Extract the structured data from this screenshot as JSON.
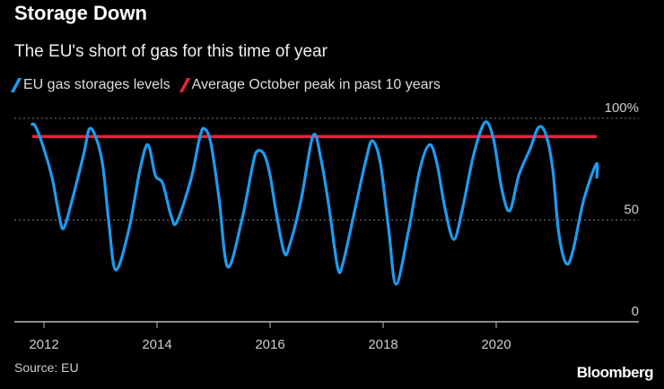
{
  "chart_data": {
    "type": "line",
    "title": "Storage Down",
    "subtitle": "The EU's short of gas for this time of year",
    "xlabel": "",
    "ylabel": "",
    "xlim": [
      2011.6,
      2022.6
    ],
    "ylim": [
      0,
      100
    ],
    "x_ticks": [
      2012,
      2014,
      2016,
      2018,
      2020
    ],
    "x_tick_labels": [
      "2012",
      "2014",
      "2016",
      "2018",
      "2020"
    ],
    "y_ticks": [
      0,
      50,
      100
    ],
    "y_tick_labels": [
      "0",
      "50",
      "100%"
    ],
    "grid": "horizontal dotted",
    "legend_position": "top-left",
    "series": [
      {
        "name": "EU gas storages levels",
        "color": "#1e9bf0",
        "points": [
          [
            2011.79,
            97
          ],
          [
            2011.85,
            96
          ],
          [
            2012.0,
            85
          ],
          [
            2012.15,
            70
          ],
          [
            2012.27,
            52
          ],
          [
            2012.35,
            46
          ],
          [
            2012.5,
            60
          ],
          [
            2012.7,
            82
          ],
          [
            2012.81,
            95
          ],
          [
            2012.95,
            88
          ],
          [
            2013.05,
            75
          ],
          [
            2013.15,
            48
          ],
          [
            2013.27,
            25.5
          ],
          [
            2013.5,
            45
          ],
          [
            2013.7,
            75
          ],
          [
            2013.84,
            87
          ],
          [
            2013.97,
            72
          ],
          [
            2014.1,
            68
          ],
          [
            2014.25,
            52
          ],
          [
            2014.35,
            49
          ],
          [
            2014.6,
            70
          ],
          [
            2014.75,
            90
          ],
          [
            2014.83,
            95
          ],
          [
            2014.95,
            88
          ],
          [
            2015.1,
            60
          ],
          [
            2015.25,
            27
          ],
          [
            2015.5,
            50
          ],
          [
            2015.7,
            78
          ],
          [
            2015.78,
            84
          ],
          [
            2015.9,
            82
          ],
          [
            2016.0,
            72
          ],
          [
            2016.1,
            55
          ],
          [
            2016.25,
            34
          ],
          [
            2016.35,
            38
          ],
          [
            2016.55,
            60
          ],
          [
            2016.76,
            91.5
          ],
          [
            2016.9,
            80
          ],
          [
            2017.05,
            55
          ],
          [
            2017.2,
            26
          ],
          [
            2017.3,
            30
          ],
          [
            2017.5,
            55
          ],
          [
            2017.7,
            80
          ],
          [
            2017.81,
            89
          ],
          [
            2017.95,
            78
          ],
          [
            2018.1,
            45
          ],
          [
            2018.23,
            18.5
          ],
          [
            2018.45,
            45
          ],
          [
            2018.65,
            75
          ],
          [
            2018.82,
            87
          ],
          [
            2018.95,
            78
          ],
          [
            2019.1,
            55
          ],
          [
            2019.25,
            40.5
          ],
          [
            2019.4,
            55
          ],
          [
            2019.6,
            82
          ],
          [
            2019.8,
            98
          ],
          [
            2019.95,
            90
          ],
          [
            2020.1,
            65
          ],
          [
            2020.24,
            54.6
          ],
          [
            2020.4,
            72
          ],
          [
            2020.6,
            85
          ],
          [
            2020.75,
            95.6
          ],
          [
            2020.88,
            92
          ],
          [
            2021.0,
            75
          ],
          [
            2021.1,
            45
          ],
          [
            2021.23,
            29
          ],
          [
            2021.35,
            34
          ],
          [
            2021.55,
            60
          ],
          [
            2021.77,
            77.5
          ],
          [
            2021.78,
            71
          ]
        ]
      },
      {
        "name": "Average October peak in past 10 years",
        "color": "#e8243c",
        "points": [
          [
            2011.79,
            91
          ],
          [
            2021.78,
            91
          ]
        ]
      }
    ],
    "source": "Source: EU",
    "brand": "Bloomberg"
  }
}
